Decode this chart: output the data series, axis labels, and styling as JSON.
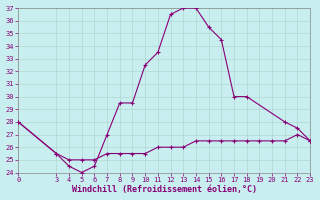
{
  "xlabel": "Windchill (Refroidissement éolien,°C)",
  "background_color": "#c8eef0",
  "grid_color": "#b0d8d0",
  "line_color": "#880077",
  "hours1": [
    0,
    3,
    4,
    5,
    6,
    7,
    8,
    9,
    10,
    11,
    12,
    13,
    14,
    15,
    16,
    17,
    18,
    21,
    22,
    23
  ],
  "temps1": [
    28,
    25.5,
    24.5,
    24,
    24.5,
    27,
    29.5,
    29.5,
    32.5,
    33.5,
    36.5,
    37,
    37,
    35.5,
    34.5,
    30,
    30,
    28,
    27.5,
    26.5
  ],
  "hours2": [
    0,
    3,
    4,
    5,
    6,
    7,
    8,
    9,
    10,
    11,
    12,
    13,
    14,
    15,
    16,
    17,
    18,
    19,
    20,
    21,
    22,
    23
  ],
  "temps2": [
    28,
    25.5,
    25,
    25,
    25,
    25.5,
    25.5,
    25.5,
    25.5,
    26,
    26,
    26,
    26.5,
    26.5,
    26.5,
    26.5,
    26.5,
    26.5,
    26.5,
    26.5,
    27,
    26.5
  ],
  "ylim": [
    24,
    37
  ],
  "xlim": [
    0,
    23
  ],
  "yticks": [
    24,
    25,
    26,
    27,
    28,
    29,
    30,
    31,
    32,
    33,
    34,
    35,
    36,
    37
  ],
  "xticks": [
    0,
    3,
    4,
    5,
    6,
    7,
    8,
    9,
    10,
    11,
    12,
    13,
    14,
    15,
    16,
    17,
    18,
    19,
    20,
    21,
    22,
    23
  ],
  "spine_color": "#888888",
  "tick_fontsize": 5,
  "xlabel_fontsize": 6
}
